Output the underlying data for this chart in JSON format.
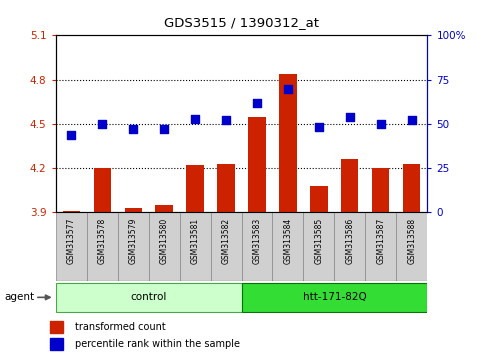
{
  "title": "GDS3515 / 1390312_at",
  "samples": [
    "GSM313577",
    "GSM313578",
    "GSM313579",
    "GSM313580",
    "GSM313581",
    "GSM313582",
    "GSM313583",
    "GSM313584",
    "GSM313585",
    "GSM313586",
    "GSM313587",
    "GSM313588"
  ],
  "transformed_count": [
    3.91,
    4.2,
    3.93,
    3.95,
    4.22,
    4.23,
    4.55,
    4.84,
    4.08,
    4.26,
    4.2,
    4.23
  ],
  "percentile_rank": [
    44,
    50,
    47,
    47,
    53,
    52,
    62,
    70,
    48,
    54,
    50,
    52
  ],
  "ylim_left": [
    3.9,
    5.1
  ],
  "ylim_right": [
    0,
    100
  ],
  "yticks_left": [
    3.9,
    4.2,
    4.5,
    4.8,
    5.1
  ],
  "ytick_labels_left": [
    "3.9",
    "4.2",
    "4.5",
    "4.8",
    "5.1"
  ],
  "yticks_right": [
    0,
    25,
    50,
    75,
    100
  ],
  "ytick_labels_right": [
    "0",
    "25",
    "50",
    "75",
    "100%"
  ],
  "hgrid_values": [
    4.2,
    4.5,
    4.8
  ],
  "bar_color": "#cc2200",
  "dot_color": "#0000cc",
  "bar_bottom": 3.9,
  "groups": [
    {
      "label": "control",
      "start": 0,
      "end": 5,
      "color": "#ccffcc",
      "edge_color": "#44aa44"
    },
    {
      "label": "htt-171-82Q",
      "start": 6,
      "end": 11,
      "color": "#33dd33",
      "edge_color": "#007700"
    }
  ],
  "agent_label": "agent",
  "legend_items": [
    {
      "color": "#cc2200",
      "label": "transformed count"
    },
    {
      "color": "#0000cc",
      "label": "percentile rank within the sample"
    }
  ],
  "bar_width": 0.55,
  "dot_size": 35,
  "sample_box_color": "#d0d0d0",
  "sample_box_edge": "#888888"
}
